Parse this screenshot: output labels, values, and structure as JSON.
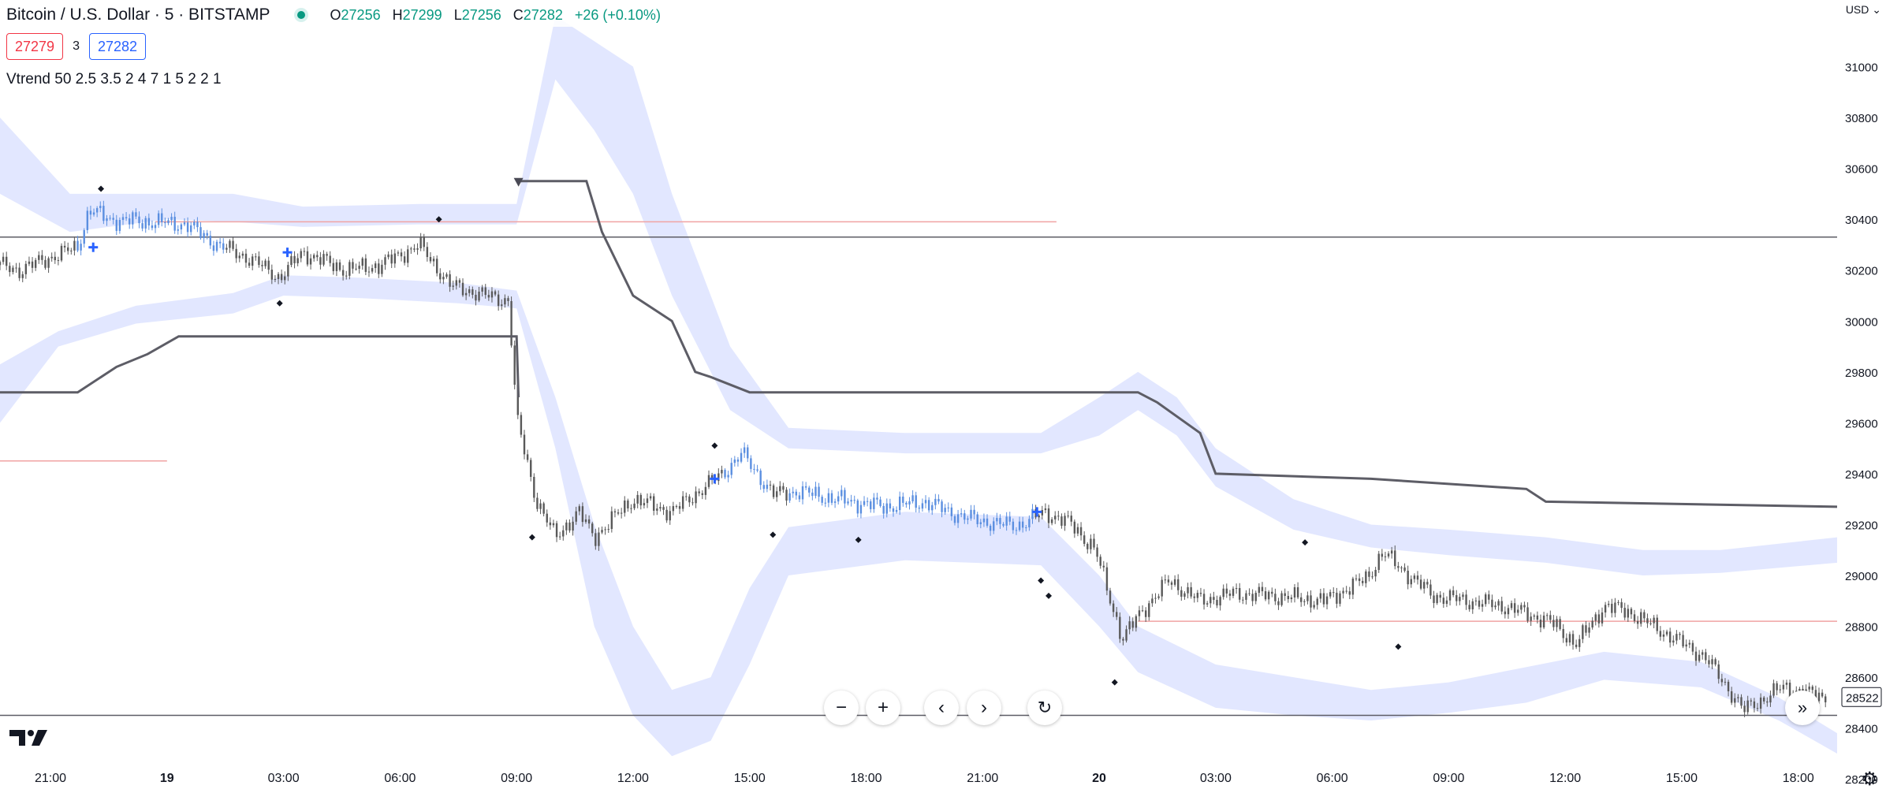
{
  "header": {
    "symbol": "Bitcoin / U.S. Dollar · 5 · BITSTAMP",
    "o_label": "O",
    "o_value": "27256",
    "h_label": "H",
    "h_value": "27299",
    "l_label": "L",
    "l_value": "27256",
    "c_label": "C",
    "c_value": "27282",
    "change": "+26 (+0.10%)"
  },
  "trade": {
    "sell_price": "27279",
    "spread": "3",
    "buy_price": "27282"
  },
  "indicator_label": "Vtrend 50 2.5 3.5 2 4 7 1 5 2 2 1",
  "currency": "USD",
  "controls": {
    "zoom_out": "−",
    "zoom_in": "+",
    "scroll_left": "‹",
    "scroll_right": "›",
    "reset": "↻",
    "go_to_realtime": "»"
  },
  "colors": {
    "up_candle": "#5b8fe0",
    "neutral_candle": "#595959",
    "band_fill": "#dde3ff",
    "trend_line": "#5d5d66",
    "resistance": "#f0a3a3",
    "marker": "#2962ff",
    "change": "#089981"
  },
  "chart_data": {
    "type": "candlestick",
    "title": "Bitcoin / U.S. Dollar · 5 · BITSTAMP",
    "y_ticks": [
      31000,
      30800,
      30600,
      30400,
      30200,
      30000,
      29800,
      29600,
      29400,
      29200,
      29000,
      28800,
      28600,
      28400,
      28200
    ],
    "ylim": [
      28210,
      31200
    ],
    "x_ticks": [
      "21:00",
      "19",
      "03:00",
      "06:00",
      "09:00",
      "12:00",
      "15:00",
      "18:00",
      "21:00",
      "20",
      "03:00",
      "06:00",
      "09:00",
      "12:00",
      "15:00",
      "18:00"
    ],
    "xlim_hours": [
      -4.3,
      43
    ],
    "current_price_label": "28522",
    "price_path": {
      "t_hours": [
        -4.3,
        -3.8,
        -3.0,
        -2.3,
        -2.0,
        -1.5,
        -0.5,
        0.5,
        1.3,
        2.2,
        2.9,
        3.5,
        4.6,
        5.5,
        6.5,
        7.3,
        8.2,
        8.8,
        9.0,
        9.5,
        10.0,
        10.6,
        11.0,
        12.0,
        13.0,
        14.3,
        14.8,
        15.6,
        16.3,
        17.2,
        18.5,
        19.5,
        20.5,
        21.5,
        22.0,
        22.6,
        23.3,
        23.9,
        24.6,
        25.1,
        25.8,
        26.6,
        27.5,
        28.5,
        29.8,
        30.9,
        31.3,
        32.6,
        33.5,
        34.4,
        35.6,
        36.3,
        37.0,
        37.6,
        38.5,
        39.6,
        40.6,
        41.6,
        42.7
      ],
      "close": [
        30220,
        30200,
        30250,
        30290,
        30440,
        30400,
        30390,
        30380,
        30300,
        30240,
        30170,
        30270,
        30200,
        30220,
        30300,
        30140,
        30100,
        30080,
        29620,
        29300,
        29150,
        29250,
        29150,
        29300,
        29250,
        29400,
        29480,
        29320,
        29330,
        29300,
        29270,
        29290,
        29230,
        29200,
        29200,
        29250,
        29200,
        29100,
        28750,
        28860,
        28980,
        28900,
        28930,
        28920,
        28900,
        28990,
        29090,
        28920,
        28900,
        28880,
        28820,
        28730,
        28880,
        28860,
        28780,
        28680,
        28470,
        28560,
        28520
      ],
      "up_segments": [
        [
          -2.3,
          1.5
        ],
        [
          14.3,
          15.5
        ],
        [
          16.0,
          22.3
        ]
      ]
    },
    "trend_line": {
      "upper": {
        "t_hours": [
          9.0,
          10.8,
          11.2,
          12.0,
          13.0,
          13.6,
          14.0,
          15.0,
          21.0,
          25.0,
          25.5,
          26.6,
          27.0,
          31.0,
          35.0,
          35.5,
          43.0
        ],
        "value": [
          30550,
          30550,
          30350,
          30100,
          30000,
          29800,
          29780,
          29720,
          29720,
          29720,
          29680,
          29560,
          29400,
          29380,
          29340,
          29290,
          29270
        ]
      },
      "lower": {
        "t_hours": [
          -4.3,
          -2.3,
          -1.3,
          -0.5,
          0.3,
          9.0,
          9.05
        ],
        "value": [
          29720,
          29720,
          29820,
          29870,
          29940,
          29940,
          29700
        ]
      }
    },
    "bands": {
      "upper": {
        "t_hours": [
          -4.3,
          -2.5,
          0,
          1.7,
          3.5,
          6.5,
          9.0,
          10.0,
          11.0,
          12.0,
          13.0,
          14.5,
          16.0,
          19.0,
          22.5,
          24.0,
          25.0,
          26.0,
          27.0,
          29.0,
          31.0,
          33.0,
          35.5,
          38.0,
          40.0,
          43.0
        ],
        "top": [
          30800,
          30500,
          30500,
          30500,
          30450,
          30460,
          30460,
          31200,
          31100,
          31000,
          30500,
          29900,
          29580,
          29560,
          29560,
          29700,
          29800,
          29700,
          29500,
          29300,
          29200,
          29180,
          29150,
          29100,
          29100,
          29150
        ],
        "bottom": [
          30500,
          30350,
          30400,
          30390,
          30370,
          30380,
          30380,
          30950,
          30750,
          30500,
          30100,
          29650,
          29500,
          29480,
          29480,
          29550,
          29650,
          29550,
          29350,
          29180,
          29110,
          29080,
          29050,
          29000,
          29010,
          29050
        ]
      },
      "lower": {
        "t_hours": [
          -4.3,
          -2.8,
          -0.8,
          1.7,
          3.0,
          5.0,
          7.5,
          9.0,
          10.0,
          11.0,
          12.0,
          13.0,
          14.0,
          15.0,
          16.0,
          19.0,
          22.5,
          24.0,
          25.0,
          27.0,
          29.0,
          31.0,
          33.0,
          35.0,
          37.0,
          39.5,
          41.5,
          43.0
        ],
        "top": [
          29830,
          29960,
          30060,
          30110,
          30180,
          30170,
          30150,
          30120,
          29700,
          29200,
          28800,
          28550,
          28600,
          28950,
          29190,
          29250,
          29230,
          29000,
          28800,
          28650,
          28600,
          28550,
          28580,
          28640,
          28700,
          28660,
          28520,
          28380
        ],
        "bottom": [
          29600,
          29900,
          29990,
          30030,
          30100,
          30090,
          30070,
          30050,
          29500,
          28800,
          28450,
          28290,
          28350,
          28650,
          29000,
          29060,
          29040,
          28800,
          28620,
          28480,
          28450,
          28430,
          28460,
          28500,
          28590,
          28560,
          28430,
          28300
        ]
      }
    },
    "horizontal_lines": [
      {
        "value": 30330,
        "color": "#5d5d66"
      },
      {
        "value": 28450,
        "color": "#5d5d66"
      },
      {
        "value": 30390,
        "t_range": [
          -0.3,
          22.9
        ],
        "color": "#f0a3a3"
      },
      {
        "value": 29450,
        "t_range": [
          -4.3,
          0.0
        ],
        "color": "#f0a3a3"
      },
      {
        "value": 28820,
        "t_range": [
          25.0,
          43.0
        ],
        "color": "#f0a3a3"
      }
    ],
    "dots": [
      {
        "t_hours": -1.7,
        "value": 30520
      },
      {
        "t_hours": 2.9,
        "value": 30070
      },
      {
        "t_hours": 7.0,
        "value": 30400
      },
      {
        "t_hours": 9.4,
        "value": 29150
      },
      {
        "t_hours": 14.1,
        "value": 29510
      },
      {
        "t_hours": 15.6,
        "value": 29160
      },
      {
        "t_hours": 17.8,
        "value": 29140
      },
      {
        "t_hours": 22.5,
        "value": 28980
      },
      {
        "t_hours": 22.7,
        "value": 28920
      },
      {
        "t_hours": 24.4,
        "value": 28580
      },
      {
        "t_hours": 29.3,
        "value": 29130
      },
      {
        "t_hours": 31.7,
        "value": 28720
      }
    ],
    "cross_markers": [
      {
        "t_hours": -1.9,
        "value": 30290
      },
      {
        "t_hours": 3.1,
        "value": 30270
      },
      {
        "t_hours": 14.1,
        "value": 29380
      },
      {
        "t_hours": 22.4,
        "value": 29250
      }
    ],
    "triangle_marker": {
      "t_hours": 9.05,
      "value": 30550
    }
  }
}
